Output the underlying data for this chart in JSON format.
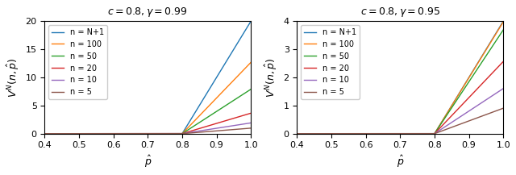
{
  "c": 0.8,
  "gamma1": 0.99,
  "gamma2": 0.95,
  "n_values": [
    null,
    100,
    50,
    20,
    10,
    5
  ],
  "n_labels": [
    "n = N+1",
    "n = 100",
    "n = 50",
    "n = 20",
    "n = 10",
    "n = 5"
  ],
  "colors": [
    "#1f77b4",
    "#ff7f0e",
    "#2ca02c",
    "#d62728",
    "#9467bd",
    "#8c564b"
  ],
  "xlim": [
    0.4,
    1.0
  ],
  "ylim1": [
    0.0,
    20.0
  ],
  "ylim2": [
    0.0,
    4.0
  ],
  "xlabel": "$\\hat{p}$",
  "ylabel": "$V^N(n, \\hat{p})$",
  "title1": "$c = 0.8, \\gamma = 0.99$",
  "title2": "$c = 0.8, \\gamma = 0.95$",
  "num_points": 1000
}
